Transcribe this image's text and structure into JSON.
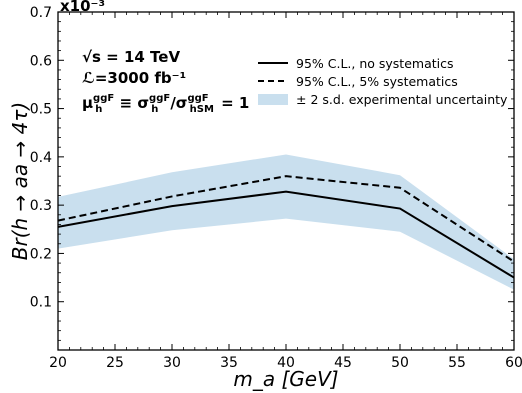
{
  "chart_data": {
    "type": "line",
    "title": "",
    "xlabel": "m_a [GeV]",
    "ylabel": "Br(h → aa → 4τ)",
    "y_scale_label": "x10⁻³",
    "xlim": [
      20,
      60
    ],
    "ylim": [
      0.0,
      0.7
    ],
    "x_ticks": [
      20,
      25,
      30,
      35,
      40,
      45,
      50,
      55,
      60
    ],
    "y_ticks": [
      0.1,
      0.2,
      0.3,
      0.4,
      0.5,
      0.6,
      0.7
    ],
    "x": [
      20,
      30,
      40,
      50,
      60
    ],
    "series": [
      {
        "name": "95% C.L., no systematics",
        "style": "solid",
        "color": "#000000",
        "values": [
          0.255,
          0.298,
          0.328,
          0.293,
          0.15
        ]
      },
      {
        "name": "95% C.L., 5% systematics",
        "style": "dashed",
        "color": "#000000",
        "values": [
          0.268,
          0.318,
          0.36,
          0.336,
          0.183
        ]
      },
      {
        "name": "± 2 s.d. experimental uncertainty",
        "style": "band",
        "color": "#c9dfee",
        "lower": [
          0.21,
          0.248,
          0.272,
          0.245,
          0.125
        ],
        "upper": [
          0.317,
          0.368,
          0.405,
          0.362,
          0.188
        ]
      }
    ],
    "annotations": {
      "energy": "√s  = 14 TeV",
      "luminosity": "ℒ=3000 fb⁻¹",
      "signal_strength": "μ_h^ggF ≡ σ_h^ggF/σ_hSM^ggF = 1"
    },
    "legend_position": "top-right",
    "grid": false
  }
}
